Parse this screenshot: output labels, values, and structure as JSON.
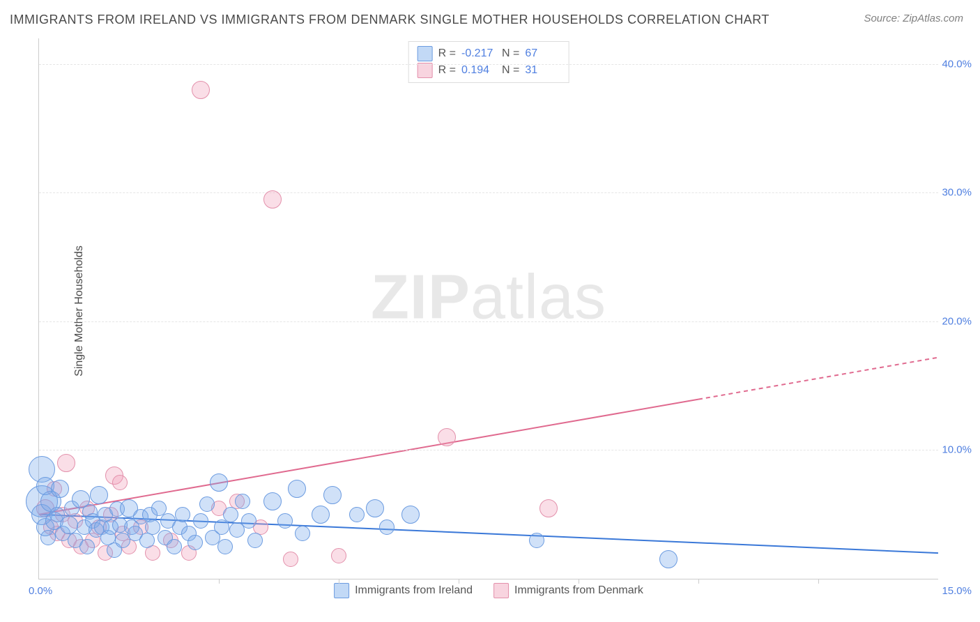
{
  "title": "IMMIGRANTS FROM IRELAND VS IMMIGRANTS FROM DENMARK SINGLE MOTHER HOUSEHOLDS CORRELATION CHART",
  "source": "Source: ZipAtlas.com",
  "ylabel": "Single Mother Households",
  "watermark_zip": "ZIP",
  "watermark_atlas": "atlas",
  "chart": {
    "type": "scatter",
    "xlim": [
      0,
      15
    ],
    "ylim": [
      0,
      42
    ],
    "x_tick_labels": {
      "left": "0.0%",
      "right": "15.0%"
    },
    "y_ticks": [
      {
        "v": 10,
        "label": "10.0%"
      },
      {
        "v": 20,
        "label": "20.0%"
      },
      {
        "v": 30,
        "label": "30.0%"
      },
      {
        "v": 40,
        "label": "40.0%"
      }
    ],
    "x_minor_ticks": [
      3,
      5,
      7,
      9,
      11,
      13
    ],
    "grid_color": "#e5e5e5",
    "background_color": "#ffffff",
    "colors": {
      "ireland_fill": "rgba(120,170,235,0.35)",
      "ireland_stroke": "#6b9be0",
      "denmark_fill": "rgba(240,160,185,0.35)",
      "denmark_stroke": "#e390ab",
      "ireland_line": "#3a78d8",
      "denmark_line": "#e06a8f",
      "tick_text": "#4f7fe0"
    },
    "stats": [
      {
        "series": "ireland",
        "R": "-0.217",
        "N": "67"
      },
      {
        "series": "denmark",
        "R": "0.194",
        "N": "31"
      }
    ],
    "stats_labels": {
      "R": "R =",
      "N": "N ="
    },
    "legend": [
      {
        "series": "ireland",
        "label": "Immigrants from Ireland"
      },
      {
        "series": "denmark",
        "label": "Immigrants from Denmark"
      }
    ],
    "trend_lines": {
      "ireland": {
        "y_at_x0": 5.0,
        "y_at_x15": 2.0,
        "solid_until_x": 15.0
      },
      "denmark": {
        "y_at_x0": 5.0,
        "y_at_x15": 17.2,
        "solid_until_x": 11.0
      }
    },
    "series": {
      "ireland": [
        {
          "x": 0.05,
          "y": 8.5,
          "r": 18
        },
        {
          "x": 0.05,
          "y": 6.0,
          "r": 22
        },
        {
          "x": 0.05,
          "y": 5.0,
          "r": 14
        },
        {
          "x": 0.1,
          "y": 7.2,
          "r": 12
        },
        {
          "x": 0.1,
          "y": 4.0,
          "r": 12
        },
        {
          "x": 0.15,
          "y": 3.2,
          "r": 10
        },
        {
          "x": 0.2,
          "y": 6.0,
          "r": 14
        },
        {
          "x": 0.25,
          "y": 4.5,
          "r": 12
        },
        {
          "x": 0.3,
          "y": 5.0,
          "r": 10
        },
        {
          "x": 0.35,
          "y": 7.0,
          "r": 12
        },
        {
          "x": 0.4,
          "y": 3.5,
          "r": 10
        },
        {
          "x": 0.5,
          "y": 4.2,
          "r": 12
        },
        {
          "x": 0.55,
          "y": 5.5,
          "r": 10
        },
        {
          "x": 0.6,
          "y": 3.0,
          "r": 10
        },
        {
          "x": 0.7,
          "y": 6.2,
          "r": 12
        },
        {
          "x": 0.75,
          "y": 4.0,
          "r": 10
        },
        {
          "x": 0.8,
          "y": 2.5,
          "r": 10
        },
        {
          "x": 0.85,
          "y": 5.2,
          "r": 10
        },
        {
          "x": 0.9,
          "y": 4.5,
          "r": 10
        },
        {
          "x": 0.95,
          "y": 3.8,
          "r": 10
        },
        {
          "x": 1.0,
          "y": 6.5,
          "r": 12
        },
        {
          "x": 1.05,
          "y": 4.0,
          "r": 10
        },
        {
          "x": 1.1,
          "y": 5.0,
          "r": 10
        },
        {
          "x": 1.15,
          "y": 3.2,
          "r": 10
        },
        {
          "x": 1.2,
          "y": 4.0,
          "r": 10
        },
        {
          "x": 1.25,
          "y": 2.2,
          "r": 10
        },
        {
          "x": 1.3,
          "y": 5.4,
          "r": 10
        },
        {
          "x": 1.35,
          "y": 4.2,
          "r": 10
        },
        {
          "x": 1.4,
          "y": 3.0,
          "r": 10
        },
        {
          "x": 1.5,
          "y": 5.5,
          "r": 12
        },
        {
          "x": 1.55,
          "y": 4.0,
          "r": 10
        },
        {
          "x": 1.6,
          "y": 3.5,
          "r": 10
        },
        {
          "x": 1.7,
          "y": 4.8,
          "r": 10
        },
        {
          "x": 1.8,
          "y": 3.0,
          "r": 10
        },
        {
          "x": 1.85,
          "y": 5.0,
          "r": 10
        },
        {
          "x": 1.9,
          "y": 4.0,
          "r": 10
        },
        {
          "x": 2.0,
          "y": 5.5,
          "r": 10
        },
        {
          "x": 2.1,
          "y": 3.2,
          "r": 10
        },
        {
          "x": 2.15,
          "y": 4.5,
          "r": 10
        },
        {
          "x": 2.25,
          "y": 2.5,
          "r": 10
        },
        {
          "x": 2.35,
          "y": 4.0,
          "r": 10
        },
        {
          "x": 2.4,
          "y": 5.0,
          "r": 10
        },
        {
          "x": 2.5,
          "y": 3.5,
          "r": 10
        },
        {
          "x": 2.6,
          "y": 2.8,
          "r": 10
        },
        {
          "x": 2.7,
          "y": 4.5,
          "r": 10
        },
        {
          "x": 2.8,
          "y": 5.8,
          "r": 10
        },
        {
          "x": 2.9,
          "y": 3.2,
          "r": 10
        },
        {
          "x": 3.0,
          "y": 7.5,
          "r": 12
        },
        {
          "x": 3.05,
          "y": 4.0,
          "r": 10
        },
        {
          "x": 3.1,
          "y": 2.5,
          "r": 10
        },
        {
          "x": 3.2,
          "y": 5.0,
          "r": 10
        },
        {
          "x": 3.3,
          "y": 3.8,
          "r": 10
        },
        {
          "x": 3.4,
          "y": 6.0,
          "r": 10
        },
        {
          "x": 3.5,
          "y": 4.5,
          "r": 10
        },
        {
          "x": 3.6,
          "y": 3.0,
          "r": 10
        },
        {
          "x": 3.9,
          "y": 6.0,
          "r": 12
        },
        {
          "x": 4.1,
          "y": 4.5,
          "r": 10
        },
        {
          "x": 4.3,
          "y": 7.0,
          "r": 12
        },
        {
          "x": 4.4,
          "y": 3.5,
          "r": 10
        },
        {
          "x": 4.7,
          "y": 5.0,
          "r": 12
        },
        {
          "x": 4.9,
          "y": 6.5,
          "r": 12
        },
        {
          "x": 5.3,
          "y": 5.0,
          "r": 10
        },
        {
          "x": 5.6,
          "y": 5.5,
          "r": 12
        },
        {
          "x": 5.8,
          "y": 4.0,
          "r": 10
        },
        {
          "x": 6.2,
          "y": 5.0,
          "r": 12
        },
        {
          "x": 8.3,
          "y": 3.0,
          "r": 10
        },
        {
          "x": 10.5,
          "y": 1.5,
          "r": 12
        }
      ],
      "denmark": [
        {
          "x": 0.1,
          "y": 5.5,
          "r": 12
        },
        {
          "x": 0.2,
          "y": 4.0,
          "r": 10
        },
        {
          "x": 0.25,
          "y": 7.0,
          "r": 10
        },
        {
          "x": 0.3,
          "y": 3.5,
          "r": 10
        },
        {
          "x": 0.4,
          "y": 5.0,
          "r": 10
        },
        {
          "x": 0.45,
          "y": 9.0,
          "r": 12
        },
        {
          "x": 0.5,
          "y": 3.0,
          "r": 10
        },
        {
          "x": 0.6,
          "y": 4.5,
          "r": 10
        },
        {
          "x": 0.7,
          "y": 2.5,
          "r": 10
        },
        {
          "x": 0.8,
          "y": 5.5,
          "r": 10
        },
        {
          "x": 0.9,
          "y": 3.0,
          "r": 10
        },
        {
          "x": 1.0,
          "y": 4.0,
          "r": 10
        },
        {
          "x": 1.1,
          "y": 2.0,
          "r": 10
        },
        {
          "x": 1.2,
          "y": 5.0,
          "r": 10
        },
        {
          "x": 1.25,
          "y": 8.0,
          "r": 12
        },
        {
          "x": 1.35,
          "y": 7.5,
          "r": 10
        },
        {
          "x": 1.4,
          "y": 3.5,
          "r": 10
        },
        {
          "x": 1.5,
          "y": 2.5,
          "r": 10
        },
        {
          "x": 1.7,
          "y": 4.0,
          "r": 10
        },
        {
          "x": 1.9,
          "y": 2.0,
          "r": 10
        },
        {
          "x": 2.2,
          "y": 3.0,
          "r": 10
        },
        {
          "x": 2.5,
          "y": 2.0,
          "r": 10
        },
        {
          "x": 2.7,
          "y": 38.0,
          "r": 12
        },
        {
          "x": 3.0,
          "y": 5.5,
          "r": 10
        },
        {
          "x": 3.3,
          "y": 6.0,
          "r": 10
        },
        {
          "x": 3.7,
          "y": 4.0,
          "r": 10
        },
        {
          "x": 3.9,
          "y": 29.5,
          "r": 12
        },
        {
          "x": 4.2,
          "y": 1.5,
          "r": 10
        },
        {
          "x": 5.0,
          "y": 1.8,
          "r": 10
        },
        {
          "x": 6.8,
          "y": 11.0,
          "r": 12
        },
        {
          "x": 8.5,
          "y": 5.5,
          "r": 12
        }
      ]
    }
  }
}
